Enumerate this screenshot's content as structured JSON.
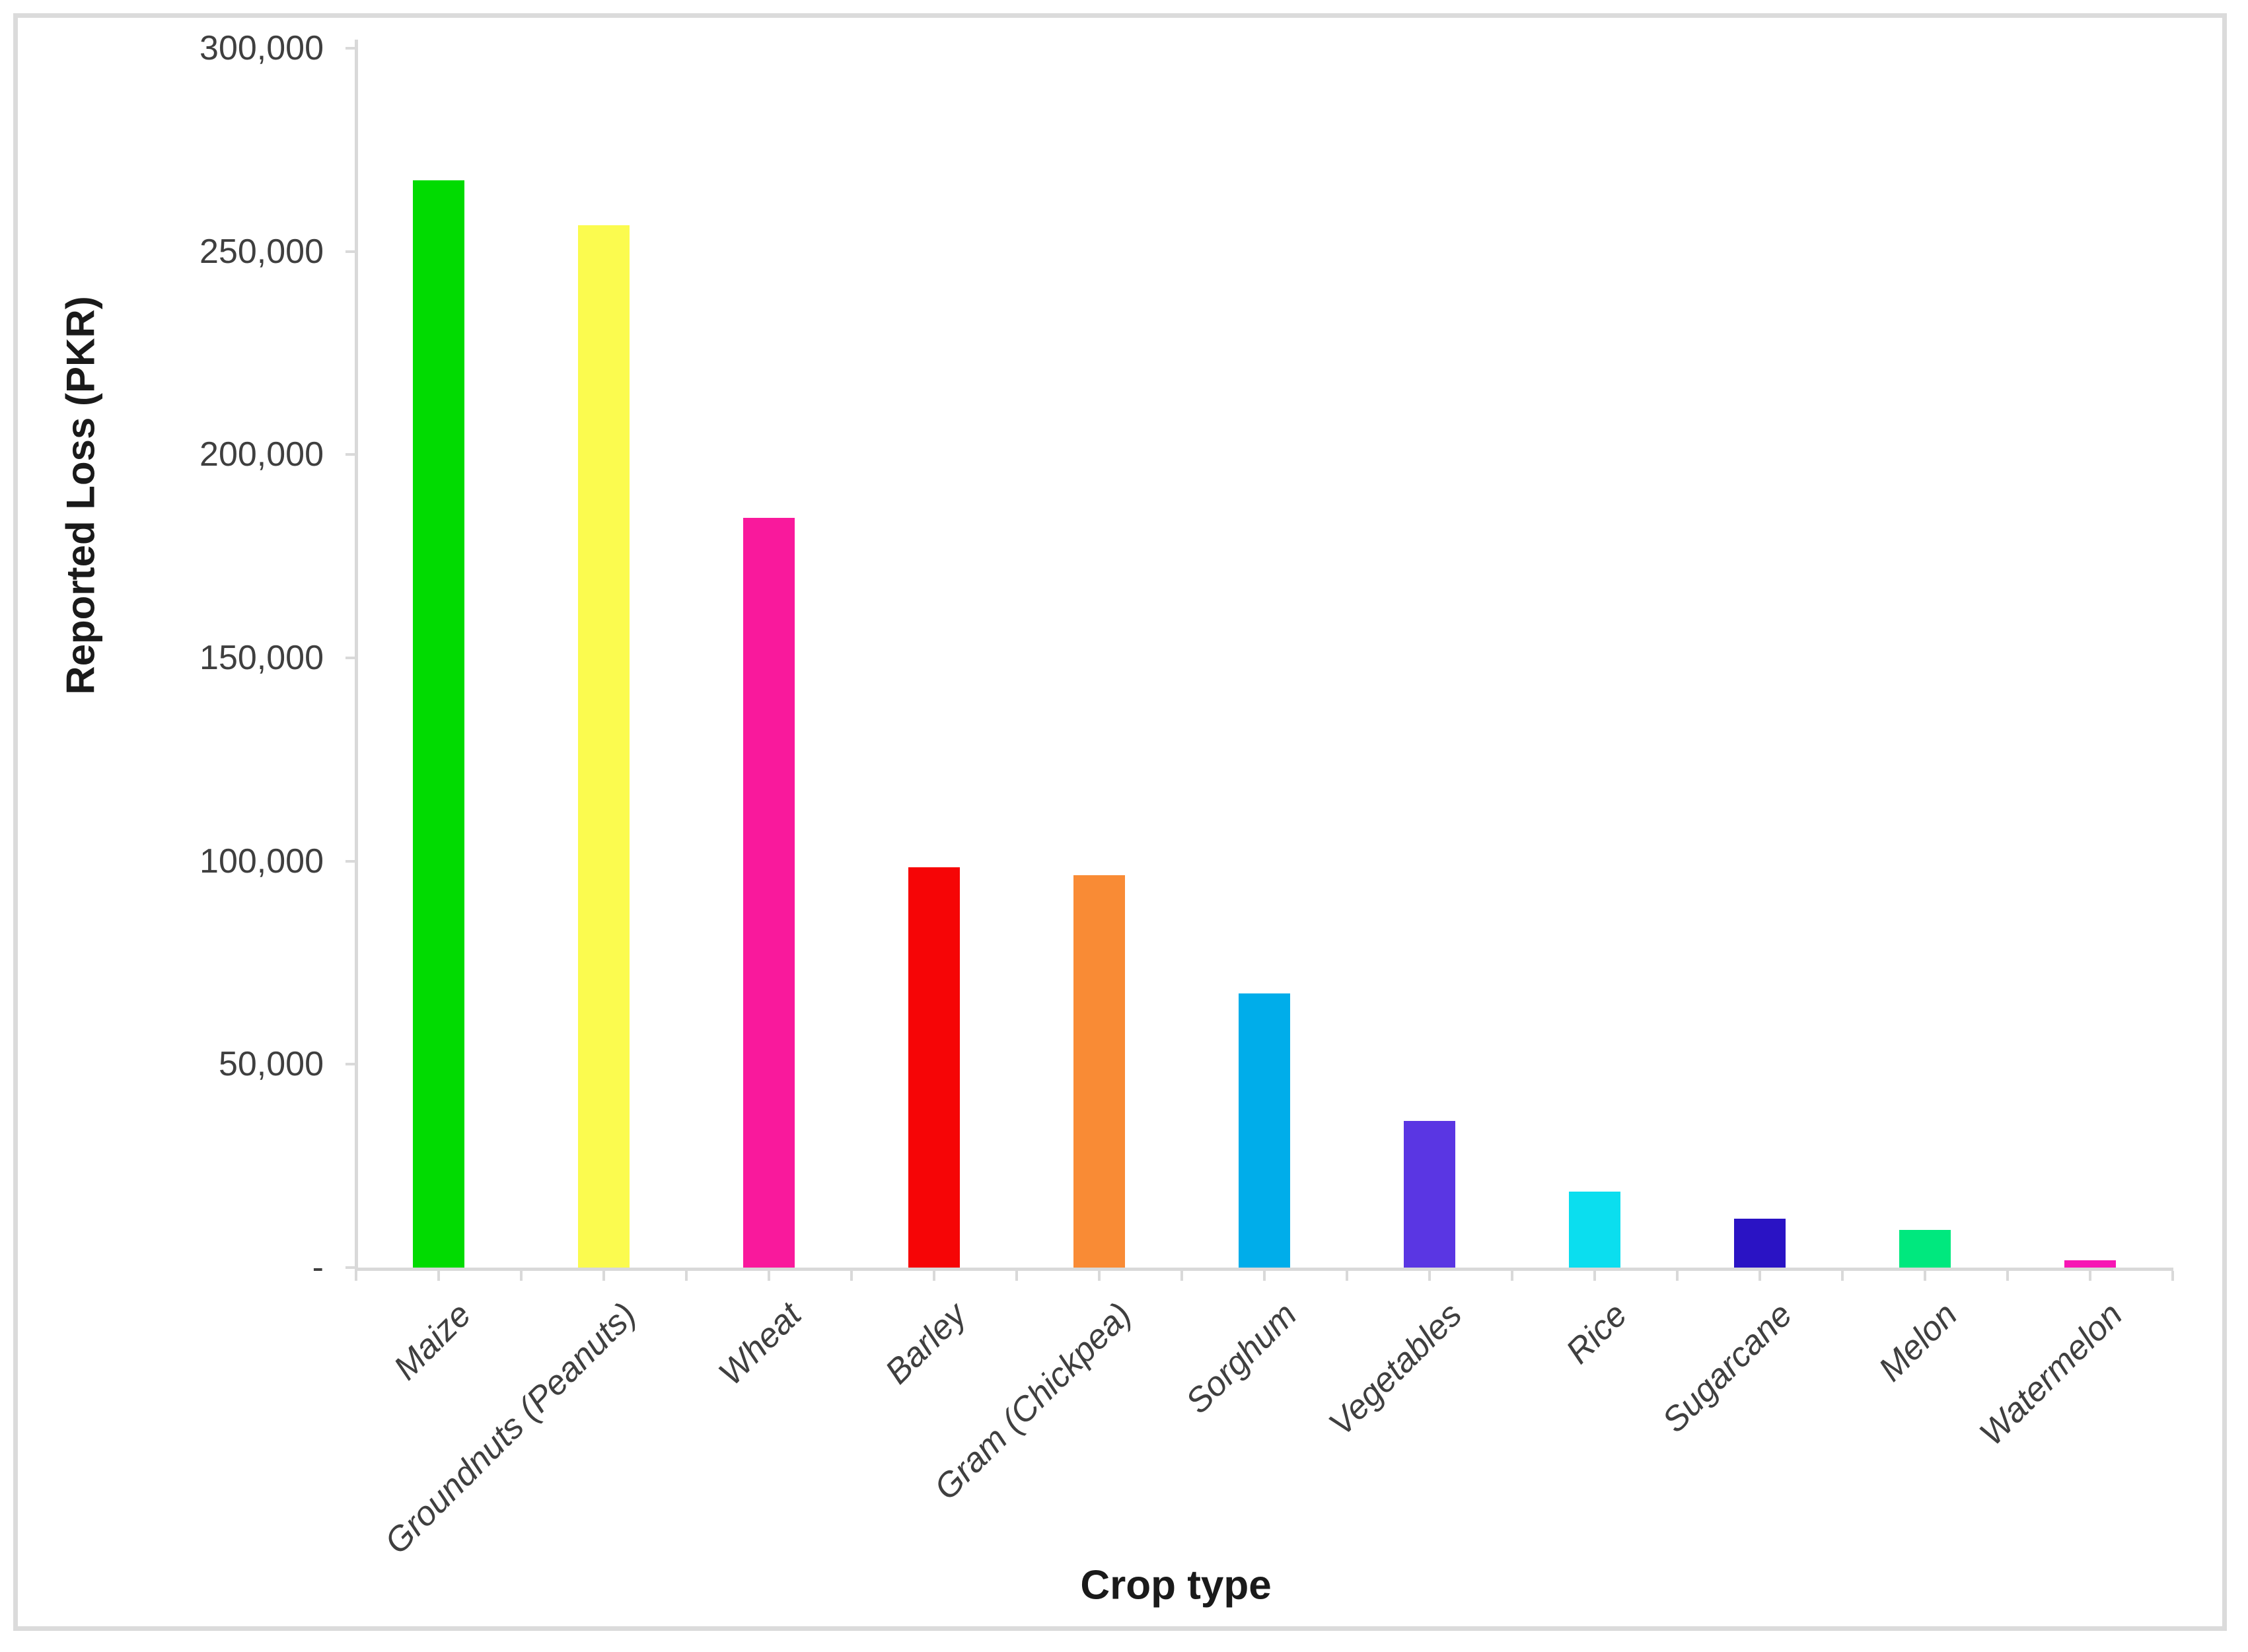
{
  "chart_data": {
    "type": "bar",
    "title": "",
    "xlabel": "Crop type",
    "ylabel": "Reported Loss (PKR)",
    "categories": [
      "Maize",
      "Groundnuts (Peanuts)",
      "Wheat",
      "Barley",
      "Gram (Chickpea)",
      "Sorghum",
      "Vegetables",
      "Rice",
      "Sugarcane",
      "Melon",
      "Watermelon"
    ],
    "values": [
      267500,
      256500,
      184500,
      98500,
      96500,
      67500,
      36000,
      18700,
      12000,
      9300,
      1800
    ],
    "bar_colors": [
      "#01DB01",
      "#FBFB4F",
      "#F9199C",
      "#F60506",
      "#F98B35",
      "#00ADEA",
      "#5A36E3",
      "#0BDEEF",
      "#2A13C4",
      "#00E87E",
      "#F716B4"
    ],
    "ylim": [
      0,
      300000
    ],
    "y_tick_values": [
      0,
      50000,
      100000,
      150000,
      200000,
      250000,
      300000
    ],
    "y_tick_labels": [
      "-",
      "50,000",
      "100,000",
      "150,000",
      "200,000",
      "250,000",
      "300,000"
    ],
    "grid": false,
    "legend": false,
    "background_color": "#FFFFFF",
    "frame_border_color": "#DBDBDB",
    "axis_color": "#D9D9D9",
    "tick_label_color": "#3F3F3F",
    "axis_title_color": "#1A1A1A"
  }
}
